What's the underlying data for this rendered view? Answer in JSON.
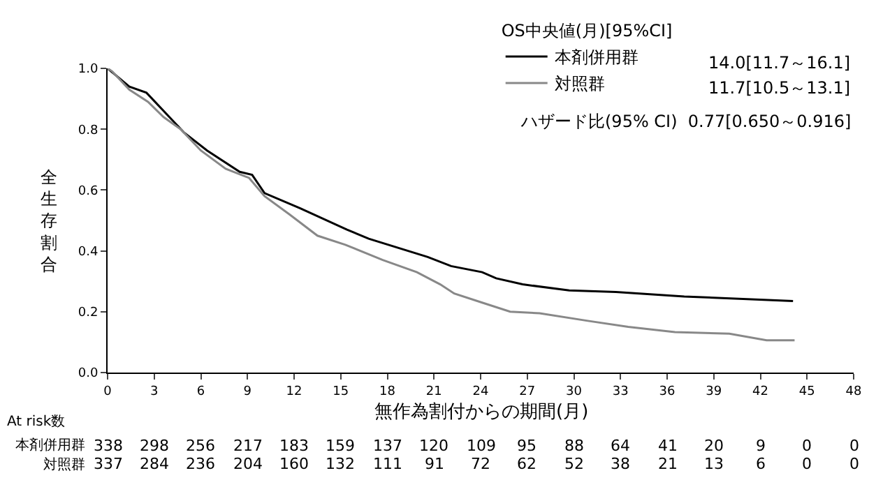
{
  "chart_data": {
    "type": "line",
    "xlabel": "無作為割付からの期間(月)",
    "ylabel": "全生存割合",
    "legend_title": "OS中央値(月)[95%CI]",
    "legend": "top right",
    "marker": "none",
    "line_style": "solid",
    "xlim": [
      0,
      48
    ],
    "xticks": [
      0,
      3,
      6,
      9,
      12,
      15,
      18,
      21,
      24,
      27,
      30,
      33,
      36,
      39,
      42,
      45,
      48
    ],
    "ylim": [
      0,
      1
    ],
    "yticks": [
      {
        "value": 0,
        "label": "0.0"
      },
      {
        "value": 0.2,
        "label": "0.2"
      },
      {
        "value": 0.4,
        "label": "0.4"
      },
      {
        "value": 0.6,
        "label": "0.6"
      },
      {
        "value": 0.8,
        "label": "0.8"
      },
      {
        "value": 1,
        "label": "1.0"
      }
    ],
    "series": [
      {
        "name": "本剤併用群",
        "color": "#000000",
        "x": [
          0,
          1.4,
          2.5,
          4.9,
          6.4,
          8.5,
          9.3,
          10.1,
          12.4,
          15.4,
          16.8,
          20.6,
          22.1,
          24.1,
          25.0,
          26.7,
          29.7,
          32.7,
          37.1,
          44.1
        ],
        "values": [
          1.0,
          0.94,
          0.92,
          0.79,
          0.73,
          0.66,
          0.65,
          0.59,
          0.54,
          0.47,
          0.44,
          0.38,
          0.35,
          0.33,
          0.31,
          0.29,
          0.27,
          0.265,
          0.25,
          0.235
        ]
      },
      {
        "name": "対照群",
        "color": "#888888",
        "x": [
          0,
          0.3,
          1.4,
          2.6,
          3.6,
          4.7,
          6.0,
          7.6,
          9.1,
          10.1,
          11.7,
          13.5,
          15.3,
          17.7,
          19.9,
          21.4,
          22.3,
          24.1,
          25.9,
          27.8,
          30.9,
          33.5,
          36.5,
          40.0,
          42.4,
          44.2
        ],
        "values": [
          1.0,
          0.99,
          0.93,
          0.89,
          0.84,
          0.8,
          0.73,
          0.67,
          0.64,
          0.58,
          0.52,
          0.45,
          0.42,
          0.37,
          0.33,
          0.29,
          0.26,
          0.23,
          0.2,
          0.195,
          0.17,
          0.15,
          0.133,
          0.128,
          0.106,
          0.106
        ]
      }
    ],
    "annotations": [
      "14.0[11.7～16.1]",
      "11.7[10.5～13.1]",
      "ハザード比(95% CI)  0.77[0.650～0.916]",
      "At risk数",
      "本剤併用群 338 298 256 217 183 159 137 120 109 95 88 64 41 20 9 0 0",
      "対照群 337 284 236 204 160 132 111 91 72 62 52 38 21 13 6 0 0"
    ]
  }
}
